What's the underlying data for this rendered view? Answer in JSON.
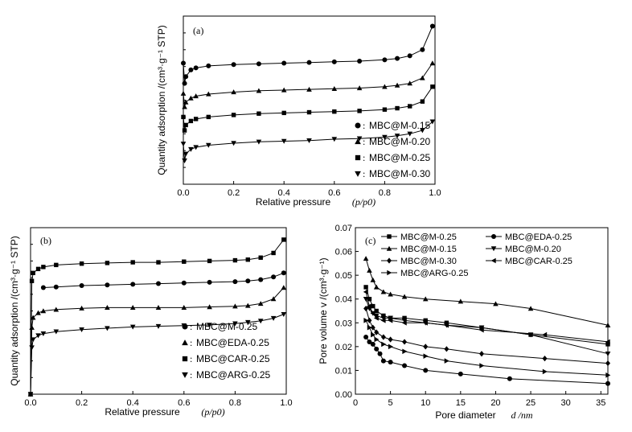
{
  "chart_data": [
    {
      "type": "line",
      "panel_label": "(a)",
      "xlabel": "Relative pressure",
      "xlabel_suffix": "(p/p0)",
      "ylabel": "Quantity adsorption /(cm³·g⁻¹ STP)",
      "xlim": [
        0,
        1.0
      ],
      "xticks": [
        "0.0",
        "0.2",
        "0.4",
        "0.6",
        "0.8",
        "1.0"
      ],
      "show_y_tick_labels": false,
      "legend_position": "bottom-right",
      "series": [
        {
          "name": "MBC@M-0.15",
          "marker": "circle",
          "x": [
            0.0,
            0.005,
            0.01,
            0.03,
            0.05,
            0.1,
            0.2,
            0.3,
            0.4,
            0.5,
            0.6,
            0.7,
            0.8,
            0.85,
            0.9,
            0.95,
            0.99
          ],
          "y": [
            180,
            150,
            160,
            170,
            173,
            176,
            178,
            179,
            180,
            181,
            182,
            183,
            185,
            187,
            191,
            200,
            235
          ]
        },
        {
          "name": "MBC@M-0.20",
          "marker": "triangle-up",
          "x": [
            0.0,
            0.005,
            0.01,
            0.03,
            0.05,
            0.1,
            0.2,
            0.3,
            0.4,
            0.5,
            0.6,
            0.7,
            0.8,
            0.85,
            0.9,
            0.95,
            0.99
          ],
          "y": [
            135,
            115,
            122,
            128,
            131,
            134,
            137,
            139,
            140,
            141,
            142,
            143,
            145,
            147,
            150,
            158,
            180
          ]
        },
        {
          "name": "MBC@M-0.25",
          "marker": "square",
          "x": [
            0.0,
            0.005,
            0.01,
            0.03,
            0.05,
            0.1,
            0.2,
            0.3,
            0.4,
            0.5,
            0.6,
            0.7,
            0.8,
            0.85,
            0.9,
            0.95,
            0.99
          ],
          "y": [
            100,
            80,
            88,
            94,
            97,
            100,
            103,
            105,
            106,
            107,
            108,
            109,
            111,
            113,
            116,
            123,
            145
          ]
        },
        {
          "name": "MBC@M-0.30",
          "marker": "triangle-down",
          "x": [
            0.0,
            0.005,
            0.01,
            0.03,
            0.05,
            0.1,
            0.2,
            0.3,
            0.4,
            0.5,
            0.6,
            0.7,
            0.8,
            0.85,
            0.9,
            0.95,
            0.99
          ],
          "y": [
            60,
            35,
            45,
            52,
            55,
            58,
            61,
            63,
            64,
            65,
            67,
            68,
            70,
            72,
            75,
            80,
            93
          ]
        }
      ],
      "ylim": [
        0,
        250
      ]
    },
    {
      "type": "line",
      "panel_label": "(b)",
      "xlabel": "Relative pressure",
      "xlabel_suffix": "(p/p0)",
      "ylabel": "Quantity adsorption /(cm³·g⁻¹ STP)",
      "xlim": [
        0,
        1.0
      ],
      "xticks": [
        "0.0",
        "0.2",
        "0.4",
        "0.6",
        "0.8",
        "1.0"
      ],
      "show_y_tick_labels": false,
      "legend_position": "bottom-right",
      "series": [
        {
          "name": "MBC@M-0.25",
          "marker": "circle",
          "x": [
            0.05,
            0.1,
            0.2,
            0.3,
            0.4,
            0.5,
            0.6,
            0.7,
            0.8,
            0.85,
            0.9,
            0.95,
            0.99
          ],
          "y": [
            160,
            161,
            163,
            164,
            165,
            166,
            167,
            168,
            169,
            170,
            172,
            176,
            182
          ]
        },
        {
          "name": "MBC@EDA-0.25",
          "marker": "triangle-up",
          "x": [
            0.0,
            0.005,
            0.01,
            0.03,
            0.05,
            0.1,
            0.2,
            0.3,
            0.4,
            0.5,
            0.6,
            0.7,
            0.8,
            0.85,
            0.9,
            0.95,
            0.99
          ],
          "y": [
            0,
            100,
            115,
            122,
            125,
            127,
            129,
            130,
            130,
            130,
            130,
            131,
            132,
            133,
            136,
            143,
            160
          ]
        },
        {
          "name": "MBC@CAR-0.25",
          "marker": "square",
          "x": [
            0.0,
            0.005,
            0.01,
            0.03,
            0.05,
            0.1,
            0.2,
            0.3,
            0.4,
            0.5,
            0.6,
            0.7,
            0.8,
            0.85,
            0.9,
            0.95,
            0.99
          ],
          "y": [
            0,
            170,
            182,
            188,
            191,
            194,
            196,
            197,
            198,
            198,
            199,
            200,
            201,
            202,
            205,
            212,
            232
          ]
        },
        {
          "name": "MBC@ARG-0.25",
          "marker": "triangle-down",
          "x": [
            0.0,
            0.005,
            0.01,
            0.03,
            0.05,
            0.1,
            0.2,
            0.3,
            0.4,
            0.5,
            0.6,
            0.7,
            0.8,
            0.85,
            0.9,
            0.95,
            0.99
          ],
          "y": [
            0,
            70,
            82,
            88,
            91,
            94,
            97,
            99,
            101,
            102,
            103,
            104,
            106,
            108,
            110,
            114,
            120
          ]
        }
      ],
      "ylim": [
        0,
        250
      ]
    },
    {
      "type": "line",
      "panel_label": "(c)",
      "xlabel": "Pore diameter",
      "xlabel_suffix": "d /nm",
      "ylabel": "Pore volume v /(cm³·g⁻¹)",
      "xlim": [
        0,
        36
      ],
      "ylim": [
        0,
        0.07
      ],
      "xticks": [
        "0",
        "5",
        "10",
        "15",
        "20",
        "25",
        "30",
        "35"
      ],
      "yticks": [
        "0.00",
        "0.01",
        "0.02",
        "0.03",
        "0.04",
        "0.05",
        "0.06",
        "0.07"
      ],
      "legend_position": "top",
      "series": [
        {
          "name": "MBC@M-0.25",
          "marker": "square",
          "x": [
            1.5,
            2,
            2.5,
            3,
            4,
            5,
            7,
            10,
            13,
            18,
            25,
            36
          ],
          "y": [
            0.045,
            0.04,
            0.037,
            0.035,
            0.033,
            0.032,
            0.032,
            0.031,
            0.03,
            0.028,
            0.025,
            0.021
          ]
        },
        {
          "name": "MBC@EDA-0.25",
          "marker": "circle",
          "x": [
            1.5,
            2,
            2.5,
            3,
            3.5,
            4,
            5,
            7,
            10,
            15,
            22,
            36
          ],
          "y": [
            0.024,
            0.022,
            0.021,
            0.019,
            0.017,
            0.014,
            0.0135,
            0.012,
            0.01,
            0.0085,
            0.0065,
            0.0045
          ]
        },
        {
          "name": "MBC@M-0.15",
          "marker": "triangle-up",
          "x": [
            1.5,
            2,
            2.5,
            3,
            4,
            5,
            7,
            10,
            15,
            20,
            25,
            36
          ],
          "y": [
            0.057,
            0.052,
            0.048,
            0.045,
            0.043,
            0.042,
            0.041,
            0.04,
            0.039,
            0.038,
            0.036,
            0.029
          ]
        },
        {
          "name": "MBC@M-0.20",
          "marker": "triangle-down",
          "x": [
            1.5,
            2,
            2.5,
            3,
            4,
            5,
            7,
            10,
            13,
            18,
            25,
            36
          ],
          "y": [
            0.04,
            0.036,
            0.034,
            0.033,
            0.032,
            0.032,
            0.031,
            0.03,
            0.029,
            0.028,
            0.025,
            0.017
          ]
        },
        {
          "name": "MBC@M-0.30",
          "marker": "diamond",
          "x": [
            1.5,
            2,
            2.5,
            3,
            4,
            5,
            7,
            10,
            13,
            18,
            27,
            36
          ],
          "y": [
            0.036,
            0.031,
            0.028,
            0.026,
            0.024,
            0.023,
            0.022,
            0.02,
            0.019,
            0.017,
            0.015,
            0.013
          ]
        },
        {
          "name": "MBC@CAR-0.25",
          "marker": "triangle-left",
          "x": [
            1.5,
            2,
            2.5,
            3,
            4,
            5,
            7,
            10,
            13,
            18,
            27,
            36
          ],
          "y": [
            0.043,
            0.037,
            0.034,
            0.032,
            0.031,
            0.031,
            0.03,
            0.03,
            0.029,
            0.027,
            0.025,
            0.022
          ]
        },
        {
          "name": "MBC@ARG-0.25",
          "marker": "triangle-right",
          "x": [
            1.5,
            2,
            2.5,
            3,
            4,
            5,
            7,
            10,
            13,
            18,
            27,
            36
          ],
          "y": [
            0.031,
            0.028,
            0.025,
            0.023,
            0.021,
            0.02,
            0.018,
            0.016,
            0.014,
            0.012,
            0.0095,
            0.008
          ]
        }
      ]
    }
  ]
}
